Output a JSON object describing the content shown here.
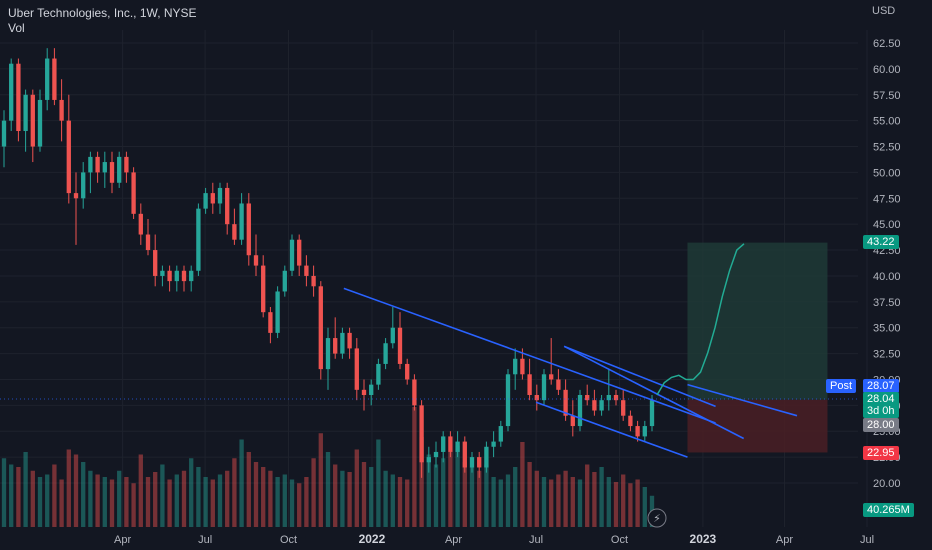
{
  "header": {
    "title": "Uber Technologies, Inc., 1W, NYSE",
    "volume_label": "Vol",
    "currency": "USD"
  },
  "price_tags": {
    "target": "43.22",
    "post_label": "Post",
    "post_price": "28.07",
    "last_price": "28.04",
    "countdown": "3d 0h",
    "entry": "28.00",
    "stop": "22.95",
    "volume": "40.265M"
  },
  "colors": {
    "background": "#131722",
    "up": "#26a69a",
    "down": "#ef5350",
    "trendline": "#2962ff",
    "projection": "#22ab94",
    "target_zone": "#1f3a36",
    "stop_zone": "#4a1e25",
    "post_tag": "#2962ff",
    "entry_tag": "#787b86"
  },
  "chart_data": {
    "type": "candlestick",
    "ylim": [
      17.5,
      64
    ],
    "yticks": [
      "20.00",
      "22.50",
      "25.00",
      "27.50",
      "30.00",
      "32.50",
      "35.00",
      "37.50",
      "40.00",
      "42.50",
      "45.00",
      "47.50",
      "50.00",
      "52.50",
      "55.00",
      "57.50",
      "60.00",
      "62.50"
    ],
    "xticks": [
      "Apr",
      "Jul",
      "Oct",
      "2022",
      "Apr",
      "Jul",
      "Oct",
      "2023",
      "Apr",
      "Jul"
    ],
    "candles": [
      {
        "o": 52.5,
        "h": 56,
        "l": 50.5,
        "c": 55
      },
      {
        "o": 55,
        "h": 61,
        "l": 54,
        "c": 60.5
      },
      {
        "o": 60.5,
        "h": 61,
        "l": 53,
        "c": 54
      },
      {
        "o": 54,
        "h": 58,
        "l": 52,
        "c": 57.5
      },
      {
        "o": 57.5,
        "h": 58,
        "l": 51,
        "c": 52.5
      },
      {
        "o": 52.5,
        "h": 58,
        "l": 52,
        "c": 57
      },
      {
        "o": 57,
        "h": 62,
        "l": 56,
        "c": 61
      },
      {
        "o": 61,
        "h": 62,
        "l": 56.5,
        "c": 57
      },
      {
        "o": 57,
        "h": 59,
        "l": 53,
        "c": 55
      },
      {
        "o": 55,
        "h": 57.5,
        "l": 47,
        "c": 48
      },
      {
        "o": 48,
        "h": 50,
        "l": 43,
        "c": 47.5
      },
      {
        "o": 47.5,
        "h": 51,
        "l": 46.5,
        "c": 50
      },
      {
        "o": 50,
        "h": 52,
        "l": 48,
        "c": 51.5
      },
      {
        "o": 51.5,
        "h": 52,
        "l": 49,
        "c": 50
      },
      {
        "o": 50,
        "h": 52,
        "l": 48.5,
        "c": 51
      },
      {
        "o": 51,
        "h": 52,
        "l": 48,
        "c": 49
      },
      {
        "o": 49,
        "h": 52,
        "l": 48.5,
        "c": 51.5
      },
      {
        "o": 51.5,
        "h": 52,
        "l": 49,
        "c": 50
      },
      {
        "o": 50,
        "h": 50.5,
        "l": 45.5,
        "c": 46
      },
      {
        "o": 46,
        "h": 47,
        "l": 43,
        "c": 44
      },
      {
        "o": 44,
        "h": 45.5,
        "l": 42,
        "c": 42.5
      },
      {
        "o": 42.5,
        "h": 44,
        "l": 39,
        "c": 40
      },
      {
        "o": 40,
        "h": 41,
        "l": 39,
        "c": 40.5
      },
      {
        "o": 40.5,
        "h": 41,
        "l": 38.5,
        "c": 39.5
      },
      {
        "o": 39.5,
        "h": 41,
        "l": 38.5,
        "c": 40.5
      },
      {
        "o": 40.5,
        "h": 41,
        "l": 38.5,
        "c": 39.5
      },
      {
        "o": 39.5,
        "h": 41,
        "l": 38.5,
        "c": 40.5
      },
      {
        "o": 40.5,
        "h": 47,
        "l": 40,
        "c": 46.5
      },
      {
        "o": 46.5,
        "h": 48.5,
        "l": 46,
        "c": 48
      },
      {
        "o": 48,
        "h": 49,
        "l": 46,
        "c": 47
      },
      {
        "o": 47,
        "h": 49,
        "l": 46,
        "c": 48.5
      },
      {
        "o": 48.5,
        "h": 49,
        "l": 44,
        "c": 45
      },
      {
        "o": 45,
        "h": 46.5,
        "l": 43,
        "c": 43.5
      },
      {
        "o": 43.5,
        "h": 48,
        "l": 43,
        "c": 47
      },
      {
        "o": 47,
        "h": 48,
        "l": 41,
        "c": 42
      },
      {
        "o": 42,
        "h": 44,
        "l": 40,
        "c": 41
      },
      {
        "o": 41,
        "h": 42,
        "l": 36,
        "c": 36.5
      },
      {
        "o": 36.5,
        "h": 37,
        "l": 33.5,
        "c": 34.5
      },
      {
        "o": 34.5,
        "h": 39,
        "l": 34,
        "c": 38.5
      },
      {
        "o": 38.5,
        "h": 41,
        "l": 38,
        "c": 40.5
      },
      {
        "o": 40.5,
        "h": 44,
        "l": 40,
        "c": 43.5
      },
      {
        "o": 43.5,
        "h": 44,
        "l": 40,
        "c": 41
      },
      {
        "o": 41,
        "h": 42,
        "l": 39,
        "c": 40
      },
      {
        "o": 40,
        "h": 41,
        "l": 38,
        "c": 39
      },
      {
        "o": 39,
        "h": 39.5,
        "l": 30,
        "c": 31
      },
      {
        "o": 31,
        "h": 35,
        "l": 29,
        "c": 34
      },
      {
        "o": 34,
        "h": 36,
        "l": 32,
        "c": 32.5
      },
      {
        "o": 32.5,
        "h": 35,
        "l": 32,
        "c": 34.5
      },
      {
        "o": 34.5,
        "h": 35,
        "l": 32,
        "c": 33
      },
      {
        "o": 33,
        "h": 34,
        "l": 28,
        "c": 29
      },
      {
        "o": 29,
        "h": 30,
        "l": 27,
        "c": 28.5
      },
      {
        "o": 28.5,
        "h": 30,
        "l": 27.5,
        "c": 29.5
      },
      {
        "o": 29.5,
        "h": 32,
        "l": 29,
        "c": 31.5
      },
      {
        "o": 31.5,
        "h": 34,
        "l": 31,
        "c": 33.5
      },
      {
        "o": 33.5,
        "h": 37,
        "l": 33,
        "c": 35
      },
      {
        "o": 35,
        "h": 36.5,
        "l": 31,
        "c": 31.5
      },
      {
        "o": 31.5,
        "h": 32,
        "l": 29.5,
        "c": 30
      },
      {
        "o": 30,
        "h": 30.5,
        "l": 27,
        "c": 27.5
      },
      {
        "o": 27.5,
        "h": 28,
        "l": 20.5,
        "c": 22
      },
      {
        "o": 22,
        "h": 23.5,
        "l": 21,
        "c": 22.5
      },
      {
        "o": 22.5,
        "h": 24,
        "l": 21.5,
        "c": 23
      },
      {
        "o": 23,
        "h": 25,
        "l": 22,
        "c": 24.5
      },
      {
        "o": 24.5,
        "h": 25,
        "l": 22.5,
        "c": 23
      },
      {
        "o": 23,
        "h": 25,
        "l": 22.5,
        "c": 24
      },
      {
        "o": 24,
        "h": 24.5,
        "l": 21,
        "c": 21.5
      },
      {
        "o": 21.5,
        "h": 23,
        "l": 21,
        "c": 22.5
      },
      {
        "o": 22.5,
        "h": 23,
        "l": 20.5,
        "c": 21.5
      },
      {
        "o": 21.5,
        "h": 24,
        "l": 21,
        "c": 23.5
      },
      {
        "o": 23.5,
        "h": 25,
        "l": 22.5,
        "c": 24
      },
      {
        "o": 24,
        "h": 26,
        "l": 23.5,
        "c": 25.5
      },
      {
        "o": 25.5,
        "h": 31,
        "l": 25,
        "c": 30.5
      },
      {
        "o": 30.5,
        "h": 33,
        "l": 29,
        "c": 32
      },
      {
        "o": 32,
        "h": 33,
        "l": 30,
        "c": 30.5
      },
      {
        "o": 30.5,
        "h": 32,
        "l": 28,
        "c": 28.5
      },
      {
        "o": 28.5,
        "h": 29.5,
        "l": 27,
        "c": 28
      },
      {
        "o": 28,
        "h": 31,
        "l": 27.5,
        "c": 30.5
      },
      {
        "o": 30.5,
        "h": 34,
        "l": 29.5,
        "c": 30
      },
      {
        "o": 30,
        "h": 31,
        "l": 28.5,
        "c": 29
      },
      {
        "o": 29,
        "h": 30,
        "l": 26,
        "c": 26.5
      },
      {
        "o": 26.5,
        "h": 28,
        "l": 24.5,
        "c": 25.5
      },
      {
        "o": 25.5,
        "h": 29,
        "l": 25,
        "c": 28.5
      },
      {
        "o": 28.5,
        "h": 29.5,
        "l": 27.5,
        "c": 28
      },
      {
        "o": 28,
        "h": 29,
        "l": 26.5,
        "c": 27
      },
      {
        "o": 27,
        "h": 28.5,
        "l": 26.5,
        "c": 28
      },
      {
        "o": 28,
        "h": 31,
        "l": 27,
        "c": 28.5
      },
      {
        "o": 28.5,
        "h": 29,
        "l": 27.5,
        "c": 28
      },
      {
        "o": 28,
        "h": 29,
        "l": 26,
        "c": 26.5
      },
      {
        "o": 26.5,
        "h": 27,
        "l": 25,
        "c": 25.5
      },
      {
        "o": 25.5,
        "h": 26,
        "l": 24,
        "c": 24.5
      },
      {
        "o": 24.5,
        "h": 26,
        "l": 24,
        "c": 25.5
      },
      {
        "o": 25.5,
        "h": 28.5,
        "l": 25,
        "c": 28
      }
    ],
    "volumes": [
      55,
      50,
      48,
      60,
      45,
      40,
      42,
      50,
      38,
      62,
      58,
      52,
      45,
      42,
      40,
      38,
      45,
      40,
      35,
      58,
      40,
      44,
      50,
      38,
      42,
      45,
      55,
      48,
      40,
      38,
      42,
      45,
      55,
      70,
      60,
      52,
      48,
      45,
      40,
      42,
      38,
      35,
      40,
      55,
      75,
      60,
      50,
      45,
      44,
      62,
      52,
      48,
      70,
      45,
      42,
      40,
      38,
      96,
      72,
      58,
      50,
      55,
      60,
      65,
      52,
      48,
      45,
      50,
      40,
      38,
      42,
      48,
      68,
      52,
      45,
      40,
      38,
      42,
      45,
      40,
      38,
      50,
      44,
      48,
      40,
      36,
      42,
      35,
      38,
      32,
      25
    ],
    "series": [
      {
        "x": [
          "2021-12-01",
          "2023-01-15"
        ],
        "y": [
          38.8,
          25.8
        ]
      },
      {
        "x": [
          "2022-08-01",
          "2023-02-15"
        ],
        "y": [
          33.2,
          24.3
        ]
      },
      {
        "x": [
          "2022-07-01",
          "2022-12-15"
        ],
        "y": [
          27.8,
          22.5
        ]
      },
      {
        "x": [
          "2022-08-01",
          "2023-01-15"
        ],
        "y": [
          33.2,
          27.4
        ]
      }
    ],
    "projection_y": [
      28.5,
      29.7,
      30.2,
      30.4,
      30.0,
      30.0,
      30.7,
      32.6,
      35,
      38,
      40.5,
      42.5,
      43.1
    ],
    "target_zone": [
      28.04,
      43.22
    ],
    "stop_zone": [
      22.95,
      28.04
    ]
  }
}
